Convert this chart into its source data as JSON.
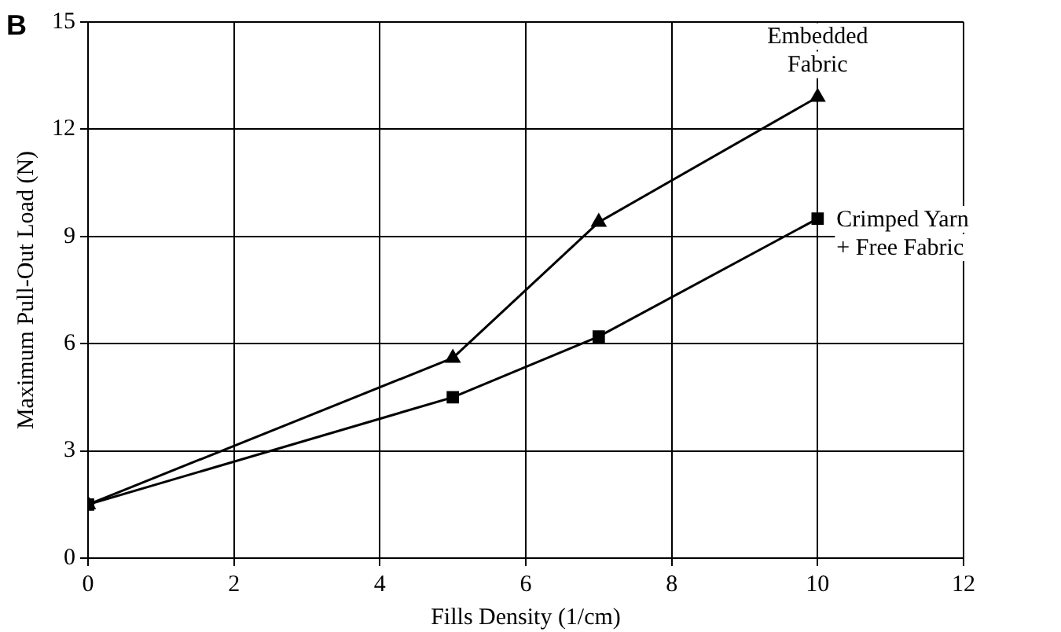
{
  "chart_data": {
    "type": "line",
    "xlabel": "Fills Density (1/cm)",
    "ylabel": "Maximum Pull-Out Load (N)",
    "annotations": [
      "B"
    ],
    "x": [
      0,
      5,
      7,
      10
    ],
    "series": [
      {
        "name": "Embedded\nFabric",
        "color": "#000000",
        "marker": "triangle",
        "values": [
          1.5,
          5.6,
          9.4,
          12.9
        ]
      },
      {
        "name": "Crimped Yarn\n+ Free Fabric",
        "color": "#000000",
        "marker": "square",
        "values": [
          1.5,
          4.5,
          6.2,
          9.5
        ]
      }
    ],
    "xlim": [
      0,
      12
    ],
    "xticks": [
      0,
      2,
      4,
      6,
      8,
      10,
      12
    ],
    "ylim": [
      0,
      15
    ],
    "yticks": [
      0,
      3,
      6,
      9,
      12,
      15
    ],
    "grid": true,
    "legend": false,
    "line_style": "solid"
  }
}
